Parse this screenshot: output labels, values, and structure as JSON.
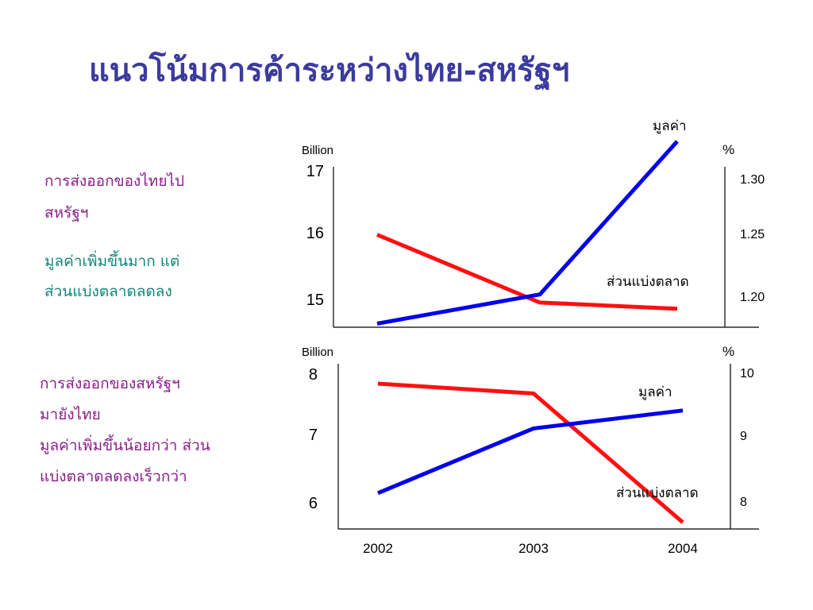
{
  "title": "แนวโน้มการค้าระหว่างไทย-สหรัฐฯ",
  "panel1": {
    "heading_lines": [
      "การส่งออกของไทยไป",
      "สหรัฐฯ"
    ],
    "note_lines": [
      "มูลค่าเพิ่มขึ้นมาก แต่",
      "ส่วนแบ่งตลาดลดลง"
    ]
  },
  "panel2": {
    "lines": [
      "การส่งออกของสหรัฐฯ",
      "มายังไทย",
      "มูลค่าเพิ่มขึ้นน้อยกว่า ส่วน",
      "แบ่งตลาดลดลงเร็วกว่า"
    ]
  },
  "colors": {
    "value": "#0000ee",
    "share": "#ff1010",
    "title": "#3b3b9e",
    "purple": "#8a1e8a",
    "teal": "#12857a"
  },
  "chart_data": [
    {
      "type": "line",
      "categories": [
        "2002",
        "2003",
        "2004"
      ],
      "left_unit": "Billion",
      "right_unit": "%",
      "left_ticks": [
        "17",
        "16",
        "15"
      ],
      "right_ticks": [
        "1.30",
        "1.25",
        "1.20"
      ],
      "left_ylim": [
        14.9,
        17.1
      ],
      "right_ylim": [
        1.18,
        1.31
      ],
      "grid": false,
      "series": [
        {
          "name": "มูลค่า",
          "axis": "left",
          "color": "#0000ee",
          "values": [
            14.95,
            15.35,
            17.45
          ]
        },
        {
          "name": "ส่วนแบ่งตลาด",
          "axis": "right",
          "color": "#ff1010",
          "values": [
            1.255,
            1.2,
            1.195
          ]
        }
      ]
    },
    {
      "type": "line",
      "categories": [
        "2002",
        "2003",
        "2004"
      ],
      "left_unit": "Billion",
      "right_unit": "%",
      "left_ticks": [
        "8",
        "7",
        "6"
      ],
      "right_ticks": [
        "10",
        "9",
        "8"
      ],
      "left_ylim": [
        5.8,
        8.1
      ],
      "right_ylim": [
        7.6,
        10.1
      ],
      "grid": false,
      "series": [
        {
          "name": "มูลค่า",
          "axis": "left",
          "color": "#0000ee",
          "values": [
            6.3,
            7.2,
            7.45
          ]
        },
        {
          "name": "ส่วนแบ่งตลาด",
          "axis": "right",
          "color": "#ff1010",
          "values": [
            9.8,
            9.65,
            7.7
          ]
        }
      ]
    }
  ]
}
